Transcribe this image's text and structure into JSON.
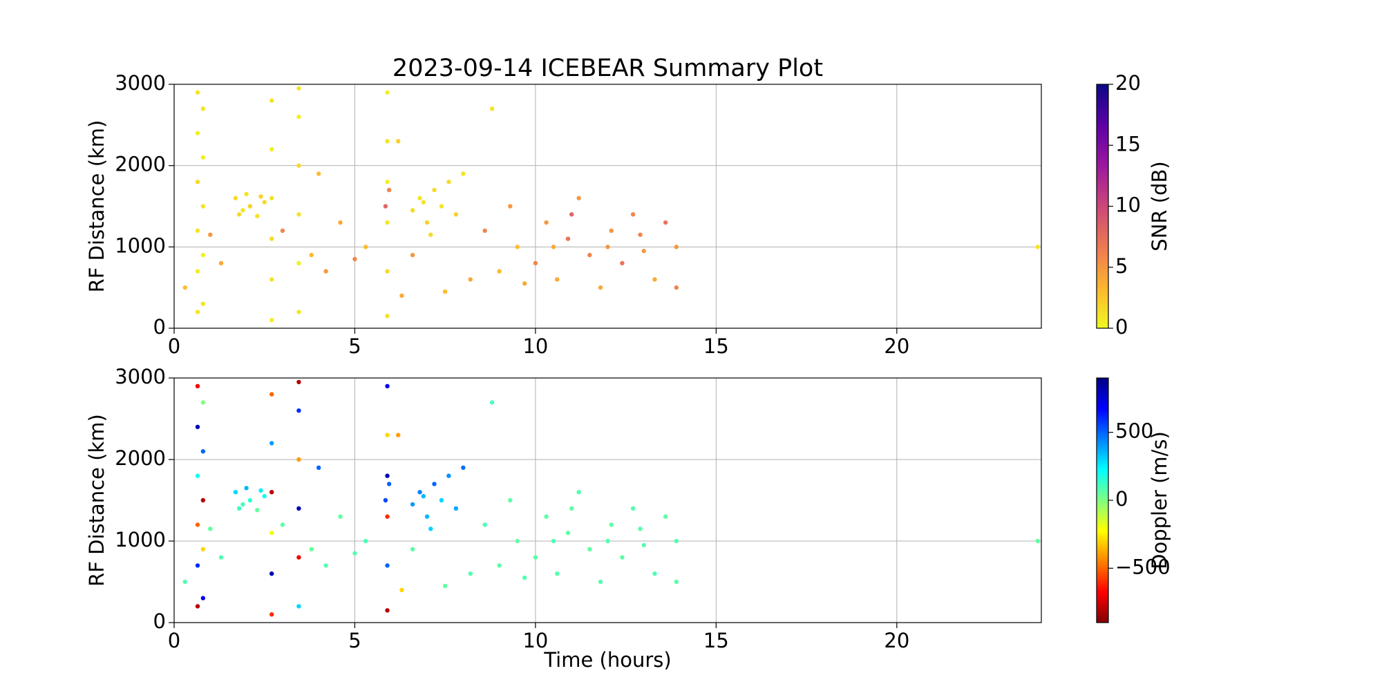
{
  "chart_data": [
    {
      "type": "scatter",
      "title": "2023-09-14 ICEBEAR Summary Plot",
      "ylabel": "RF Distance (km)",
      "xlim": [
        0,
        24
      ],
      "xticks": [
        0,
        5,
        10,
        15,
        20
      ],
      "ylim": [
        0,
        3000
      ],
      "yticks": [
        0,
        1000,
        2000,
        3000
      ],
      "grid": true,
      "x": [
        0.65,
        0.65,
        0.65,
        0.65,
        0.65,
        0.65,
        0.8,
        0.8,
        0.8,
        0.8,
        0.8,
        2.7,
        2.7,
        2.7,
        2.7,
        2.7,
        2.7,
        3.45,
        3.45,
        3.45,
        3.45,
        3.45,
        3.45,
        5.9,
        5.9,
        5.9,
        5.9,
        5.9,
        5.9,
        1.7,
        1.9,
        2.1,
        2.3,
        2.5,
        2.0,
        2.4,
        1.8,
        6.6,
        6.8,
        7.0,
        7.2,
        7.4,
        7.6,
        7.8,
        8.0,
        7.1,
        6.9,
        5.85,
        5.95,
        0.3,
        1.0,
        1.3,
        3.0,
        3.8,
        4.2,
        4.6,
        5.0,
        5.3,
        6.3,
        6.6,
        7.5,
        8.2,
        8.6,
        9.0,
        9.3,
        9.7,
        10.0,
        10.3,
        10.6,
        10.9,
        11.2,
        11.5,
        11.8,
        12.1,
        12.4,
        12.7,
        13.0,
        13.3,
        13.6,
        13.9,
        13.9,
        11.0,
        12.0,
        12.9,
        10.5,
        9.5,
        8.8,
        6.2,
        4.0,
        23.9
      ],
      "y": [
        200,
        700,
        1200,
        1800,
        2400,
        2900,
        300,
        900,
        1500,
        2100,
        2700,
        100,
        600,
        1100,
        1600,
        2200,
        2800,
        200,
        800,
        1400,
        2000,
        2600,
        2950,
        150,
        700,
        1300,
        1800,
        2300,
        2900,
        1600,
        1450,
        1500,
        1380,
        1550,
        1650,
        1620,
        1400,
        1450,
        1600,
        1300,
        1700,
        1500,
        1800,
        1400,
        1900,
        1150,
        1550,
        1500,
        1700,
        500,
        1150,
        800,
        1200,
        900,
        700,
        1300,
        850,
        1000,
        400,
        900,
        450,
        600,
        1200,
        700,
        1500,
        550,
        800,
        1300,
        600,
        1100,
        1600,
        900,
        500,
        1200,
        800,
        1400,
        950,
        600,
        1300,
        1000,
        500,
        1400,
        1000,
        1150,
        1000,
        1000,
        2700,
        2300,
        1900,
        1000
      ],
      "c": [
        1,
        0.5,
        1,
        1.5,
        0.5,
        1,
        1,
        0.5,
        1,
        0.5,
        1,
        0.5,
        1,
        1.5,
        1,
        0.5,
        1,
        1,
        0.5,
        1,
        1.5,
        0.5,
        1,
        1,
        1.5,
        1,
        0.5,
        1,
        0.5,
        1.5,
        1,
        2,
        1,
        1.5,
        1,
        2,
        1.5,
        1.5,
        1,
        2,
        1.5,
        1,
        1.5,
        2,
        1,
        1.5,
        1,
        8,
        6,
        3,
        5,
        4,
        6,
        3,
        5,
        4,
        6,
        3,
        4,
        5,
        3,
        4,
        6,
        3,
        5,
        4,
        6,
        5,
        4,
        7,
        5,
        6,
        4,
        5,
        7,
        6,
        5,
        4,
        7,
        5,
        6,
        8,
        5,
        6,
        4,
        3,
        1,
        2,
        3,
        1
      ],
      "colorbar": {
        "label": "SNR (dB)",
        "lim": [
          0,
          20
        ],
        "ticks": [
          0,
          5,
          10,
          15,
          20
        ],
        "colormap": [
          "#f0f921",
          "#fdb42f",
          "#ed7953",
          "#cc4778",
          "#9c179e",
          "#5c01a6",
          "#0d0887"
        ]
      }
    },
    {
      "type": "scatter",
      "ylabel": "RF Distance (km)",
      "xlabel": "Time (hours)",
      "xlim": [
        0,
        24
      ],
      "xticks": [
        0,
        5,
        10,
        15,
        20
      ],
      "ylim": [
        0,
        3000
      ],
      "yticks": [
        0,
        1000,
        2000,
        3000
      ],
      "grid": true,
      "x": [
        0.65,
        0.65,
        0.65,
        0.65,
        0.65,
        0.65,
        0.8,
        0.8,
        0.8,
        0.8,
        0.8,
        2.7,
        2.7,
        2.7,
        2.7,
        2.7,
        2.7,
        3.45,
        3.45,
        3.45,
        3.45,
        3.45,
        3.45,
        5.9,
        5.9,
        5.9,
        5.9,
        5.9,
        5.9,
        1.7,
        1.9,
        2.1,
        2.3,
        2.5,
        2.0,
        2.4,
        1.8,
        6.6,
        6.8,
        7.0,
        7.2,
        7.4,
        7.6,
        7.8,
        8.0,
        7.1,
        6.9,
        5.85,
        5.95,
        0.3,
        1.0,
        1.3,
        3.0,
        3.8,
        4.2,
        4.6,
        5.0,
        5.3,
        6.3,
        6.6,
        7.5,
        8.2,
        8.6,
        9.0,
        9.3,
        9.7,
        10.0,
        10.3,
        10.6,
        10.9,
        11.2,
        11.5,
        11.8,
        12.1,
        12.4,
        12.7,
        13.0,
        13.3,
        13.6,
        13.9,
        13.9,
        11.0,
        12.0,
        12.9,
        10.5,
        9.5,
        8.8,
        6.2,
        4.0,
        23.9
      ],
      "y": [
        200,
        700,
        1200,
        1800,
        2400,
        2900,
        300,
        900,
        1500,
        2100,
        2700,
        100,
        600,
        1100,
        1600,
        2200,
        2800,
        200,
        800,
        1400,
        2000,
        2600,
        2950,
        150,
        700,
        1300,
        1800,
        2300,
        2900,
        1600,
        1450,
        1500,
        1380,
        1550,
        1650,
        1620,
        1400,
        1450,
        1600,
        1300,
        1700,
        1500,
        1800,
        1400,
        1900,
        1150,
        1550,
        1500,
        1700,
        500,
        1150,
        800,
        1200,
        900,
        700,
        1300,
        850,
        1000,
        400,
        900,
        450,
        600,
        1200,
        700,
        1500,
        550,
        800,
        1300,
        600,
        1100,
        1600,
        900,
        500,
        1200,
        800,
        1400,
        950,
        600,
        1300,
        1000,
        500,
        1400,
        1000,
        1150,
        1000,
        1000,
        2700,
        2300,
        1900,
        1000
      ],
      "c": [
        -800,
        600,
        -500,
        200,
        800,
        -700,
        700,
        -300,
        -800,
        500,
        0,
        -600,
        800,
        -200,
        -800,
        400,
        -500,
        300,
        -700,
        800,
        -400,
        600,
        -800,
        -800,
        500,
        -600,
        800,
        -300,
        700,
        300,
        100,
        150,
        50,
        200,
        350,
        250,
        120,
        400,
        450,
        350,
        500,
        300,
        420,
        380,
        480,
        300,
        350,
        550,
        500,
        80,
        60,
        90,
        70,
        50,
        80,
        60,
        70,
        90,
        -300,
        70,
        60,
        80,
        90,
        70,
        60,
        80,
        70,
        60,
        80,
        70,
        90,
        60,
        80,
        70,
        60,
        80,
        70,
        90,
        60,
        80,
        70,
        60,
        80,
        70,
        90,
        60,
        100,
        -400,
        500,
        60
      ],
      "colorbar": {
        "label": "Doppler (m/s)",
        "lim": [
          -900,
          900
        ],
        "ticks": [
          {
            "value": -500,
            "label": "−500"
          },
          0,
          500
        ],
        "colormap": [
          "#800000",
          "#ff0000",
          "#ff8000",
          "#ffff00",
          "#80ff80",
          "#00ffff",
          "#0080ff",
          "#0000ff",
          "#000080"
        ]
      }
    }
  ]
}
